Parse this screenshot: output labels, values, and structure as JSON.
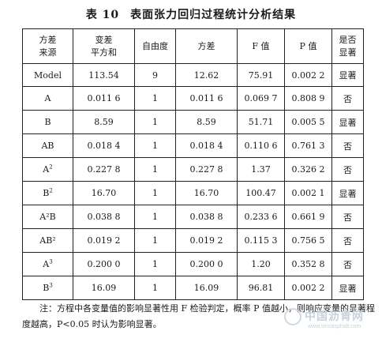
{
  "caption": {
    "number": "表 10",
    "text": "表面张力回归过程统计分析结果"
  },
  "table": {
    "headers": [
      [
        "方差",
        "来源"
      ],
      [
        "变差",
        "平方和"
      ],
      [
        "自由度"
      ],
      [
        "方差"
      ],
      [
        "F 值"
      ],
      [
        "P 值"
      ],
      [
        "是否",
        "显著"
      ]
    ],
    "rows": [
      {
        "source": "Model",
        "sup": "",
        "ss": "113.54",
        "df": "9",
        "ms": "12.62",
        "f": "75.91",
        "p": "0.002 2",
        "sig": "显著"
      },
      {
        "source": "A",
        "sup": "",
        "ss": "0.011 6",
        "df": "1",
        "ms": "0.011 6",
        "f": "0.069 7",
        "p": "0.808 9",
        "sig": "否"
      },
      {
        "source": "B",
        "sup": "",
        "ss": "8.59",
        "df": "1",
        "ms": "8.59",
        "f": "51.71",
        "p": "0.005 5",
        "sig": "显著"
      },
      {
        "source": "AB",
        "sup": "",
        "ss": "0.018 4",
        "df": "1",
        "ms": "0.018 4",
        "f": "0.110 6",
        "p": "0.761 3",
        "sig": "否"
      },
      {
        "source": "A",
        "sup": "2",
        "ss": "0.227 8",
        "df": "1",
        "ms": "0.227 8",
        "f": "1.37",
        "p": "0.326 2",
        "sig": "否"
      },
      {
        "source": "B",
        "sup": "2",
        "ss": "16.70",
        "df": "1",
        "ms": "16.70",
        "f": "100.47",
        "p": "0.002 1",
        "sig": "显著"
      },
      {
        "source": "A²B",
        "sup": "",
        "ss": "0.038 8",
        "df": "1",
        "ms": "0.038 8",
        "f": "0.233 6",
        "p": "0.661 9",
        "sig": "否"
      },
      {
        "source": "AB²",
        "sup": "",
        "ss": "0.019 2",
        "df": "1",
        "ms": "0.019 2",
        "f": "0.115 3",
        "p": "0.756 5",
        "sig": "否"
      },
      {
        "source": "A",
        "sup": "3",
        "ss": "0.200 0",
        "df": "1",
        "ms": "0.200 0",
        "f": "1.20",
        "p": "0.352 8",
        "sig": "否"
      },
      {
        "source": "B",
        "sup": "3",
        "ss": "16.09",
        "df": "1",
        "ms": "16.09",
        "f": "96.81",
        "p": "0.002 2",
        "sig": "显著"
      }
    ]
  },
  "note": "注：方程中各变量值的影响显著性用 F 检验判定，概率 P 值越小，则响应变量的显著程度越高，P<0.05 时认为影响显著。",
  "watermark": {
    "cn": "中国沥青网",
    "url": "www.sinoasphalt.com"
  }
}
